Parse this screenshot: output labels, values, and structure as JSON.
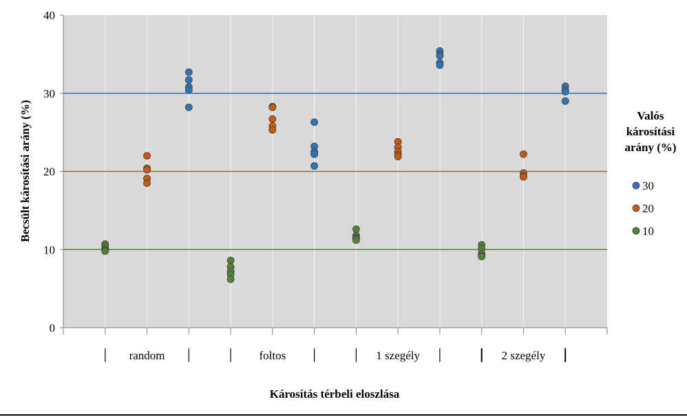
{
  "chart_data": {
    "type": "scatter",
    "title": "",
    "xlabel": "Károsítás térbeli eloszlása",
    "ylabel": "Becsült károsítási arány (%)",
    "ylim": [
      0,
      40
    ],
    "yticks": [
      0,
      10,
      20,
      30,
      40
    ],
    "grid": "vertical",
    "legend_title": "Valós károsítási arány (%)",
    "legend_title_lines": [
      "Valós",
      "károsítási",
      "arány (%)"
    ],
    "legend_position": "right",
    "colors": {
      "30": "#2e75b6",
      "20": "#c55a11",
      "10": "#548235",
      "plot_bg": "#d9d9d9"
    },
    "groups": [
      {
        "label": "random"
      },
      {
        "label": "foltos"
      },
      {
        "label": "1 szegély"
      },
      {
        "label": "2 szegély"
      }
    ],
    "reference_lines": [
      {
        "series": "30",
        "value": 30
      },
      {
        "series": "20",
        "value": 20
      },
      {
        "series": "10",
        "value": 10
      }
    ],
    "series": [
      {
        "name": "30",
        "points": [
          {
            "group": "random",
            "values": [
              32.7,
              31.7,
              30.8,
              30.4,
              28.2
            ]
          },
          {
            "group": "foltos",
            "values": [
              26.3,
              23.2,
              22.5,
              22.2,
              20.7
            ]
          },
          {
            "group": "1 szegély",
            "values": [
              35.4,
              34.9,
              34.8,
              33.9,
              33.6
            ]
          },
          {
            "group": "2 szegély",
            "values": [
              30.9,
              30.4,
              30.2,
              29.0
            ]
          }
        ]
      },
      {
        "name": "20",
        "points": [
          {
            "group": "random",
            "values": [
              22.0,
              20.4,
              20.2,
              19.1,
              18.5
            ]
          },
          {
            "group": "foltos",
            "values": [
              28.3,
              28.2,
              26.7,
              25.8,
              25.3
            ]
          },
          {
            "group": "1 szegély",
            "values": [
              23.8,
              23.1,
              22.5,
              22.1,
              21.9
            ]
          },
          {
            "group": "2 szegély",
            "values": [
              22.2,
              19.8,
              19.4,
              19.3
            ]
          }
        ]
      },
      {
        "name": "10",
        "points": [
          {
            "group": "random",
            "values": [
              10.7,
              10.4,
              10.1,
              9.9,
              9.8
            ]
          },
          {
            "group": "foltos",
            "values": [
              8.6,
              7.8,
              7.2,
              6.8,
              6.2
            ]
          },
          {
            "group": "1 szegély",
            "values": [
              12.6,
              11.8,
              11.5,
              11.4,
              11.2
            ]
          },
          {
            "group": "2 szegély",
            "values": [
              10.6,
              10.1,
              9.5,
              9.2,
              9.1
            ]
          }
        ]
      }
    ]
  }
}
